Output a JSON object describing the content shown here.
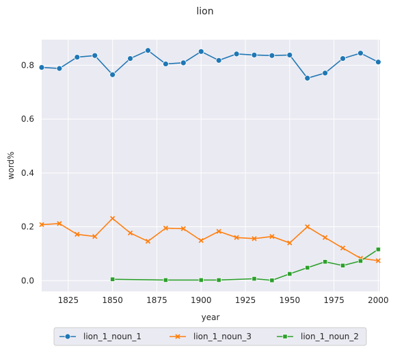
{
  "chart_data": {
    "type": "line",
    "title": "lion",
    "xlabel": "year",
    "ylabel": "word%",
    "xlim": [
      1810,
      2001
    ],
    "ylim": [
      -0.04,
      0.895
    ],
    "xticks": [
      1825,
      1850,
      1875,
      1900,
      1925,
      1950,
      1975,
      2000
    ],
    "yticks": [
      0.0,
      0.2,
      0.4,
      0.6,
      0.8
    ],
    "ytick_labels": [
      "0.0",
      "0.2",
      "0.4",
      "0.6",
      "0.8"
    ],
    "grid": true,
    "legend_position": "bottom-center, below plot",
    "background_color": "#eaeaf2",
    "series": [
      {
        "name": "lion_1_noun_1",
        "color": "#1f77b4",
        "marker": "circle",
        "x": [
          1810,
          1820,
          1830,
          1840,
          1850,
          1860,
          1870,
          1880,
          1890,
          1900,
          1910,
          1920,
          1930,
          1940,
          1950,
          1960,
          1970,
          1980,
          1990,
          2000
        ],
        "y": [
          0.792,
          0.788,
          0.83,
          0.836,
          0.765,
          0.825,
          0.855,
          0.805,
          0.809,
          0.851,
          0.818,
          0.842,
          0.838,
          0.836,
          0.838,
          0.752,
          0.771,
          0.825,
          0.845,
          0.812
        ]
      },
      {
        "name": "lion_1_noun_3",
        "color": "#ff7f0e",
        "marker": "x",
        "x": [
          1810,
          1820,
          1830,
          1840,
          1850,
          1860,
          1870,
          1880,
          1890,
          1900,
          1910,
          1920,
          1930,
          1940,
          1950,
          1960,
          1970,
          1980,
          1990,
          2000
        ],
        "y": [
          0.208,
          0.212,
          0.172,
          0.164,
          0.231,
          0.177,
          0.146,
          0.195,
          0.193,
          0.149,
          0.183,
          0.16,
          0.156,
          0.164,
          0.14,
          0.2,
          0.16,
          0.121,
          0.083,
          0.074
        ]
      },
      {
        "name": "lion_1_noun_2",
        "color": "#2ca02c",
        "marker": "square",
        "x": [
          1850,
          1880,
          1900,
          1910,
          1930,
          1940,
          1950,
          1960,
          1970,
          1980,
          1990,
          2000
        ],
        "y": [
          0.005,
          0.002,
          0.002,
          0.002,
          0.007,
          0.001,
          0.025,
          0.048,
          0.07,
          0.056,
          0.073,
          0.116
        ]
      }
    ]
  }
}
